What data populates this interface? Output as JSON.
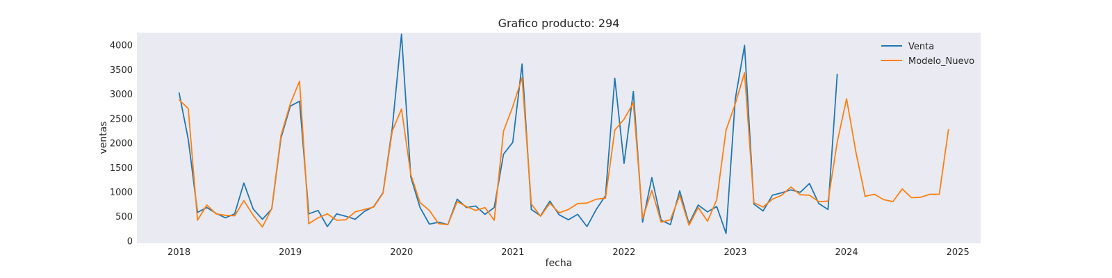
{
  "chart_data": {
    "type": "line",
    "title": "Grafico producto: 294",
    "xlabel": "fecha",
    "ylabel": "ventas",
    "x_ticks": [
      "2018",
      "2019",
      "2020",
      "2021",
      "2022",
      "2023",
      "2024",
      "2025"
    ],
    "y_ticks": [
      "0",
      "500",
      "1000",
      "1500",
      "2000",
      "2500",
      "3000",
      "3500",
      "4000"
    ],
    "ylim": [
      -50,
      4250
    ],
    "xlim": [
      "2017-08-15",
      "2025-03-15"
    ],
    "grid": false,
    "legend_position": "top-right",
    "series": [
      {
        "name": "Venta",
        "color": "#1f77b4",
        "start": "2018-01",
        "values": [
          3030,
          2070,
          580,
          680,
          560,
          470,
          550,
          1180,
          650,
          440,
          650,
          2100,
          2750,
          2850,
          550,
          620,
          290,
          550,
          500,
          440,
          600,
          700,
          980,
          2300,
          4220,
          1300,
          680,
          340,
          380,
          330,
          850,
          680,
          710,
          540,
          680,
          1770,
          2010,
          3610,
          640,
          510,
          810,
          530,
          430,
          540,
          290,
          640,
          920,
          3320,
          1580,
          3050,
          380,
          1290,
          420,
          330,
          1020,
          350,
          730,
          590,
          700,
          150,
          2900,
          3990,
          750,
          610,
          930,
          980,
          1040,
          990,
          1170,
          760,
          640,
          3410
        ]
      },
      {
        "name": "Modelo_Nuevo",
        "color": "#ff7f0e",
        "start": "2018-01",
        "values": [
          2880,
          2700,
          420,
          730,
          550,
          520,
          510,
          820,
          520,
          280,
          660,
          2150,
          2800,
          3260,
          350,
          470,
          550,
          420,
          430,
          590,
          640,
          690,
          970,
          2240,
          2690,
          1350,
          780,
          620,
          350,
          330,
          800,
          700,
          620,
          680,
          420,
          2240,
          2740,
          3330,
          750,
          500,
          770,
          570,
          640,
          760,
          770,
          850,
          870,
          2260,
          2480,
          2820,
          460,
          1030,
          380,
          430,
          930,
          320,
          680,
          400,
          840,
          2260,
          2800,
          3430,
          780,
          690,
          850,
          930,
          1100,
          940,
          930,
          800,
          810,
          2020,
          2900,
          1820,
          910,
          950,
          840,
          800,
          1060,
          880,
          890,
          950,
          950,
          2280
        ]
      }
    ]
  }
}
